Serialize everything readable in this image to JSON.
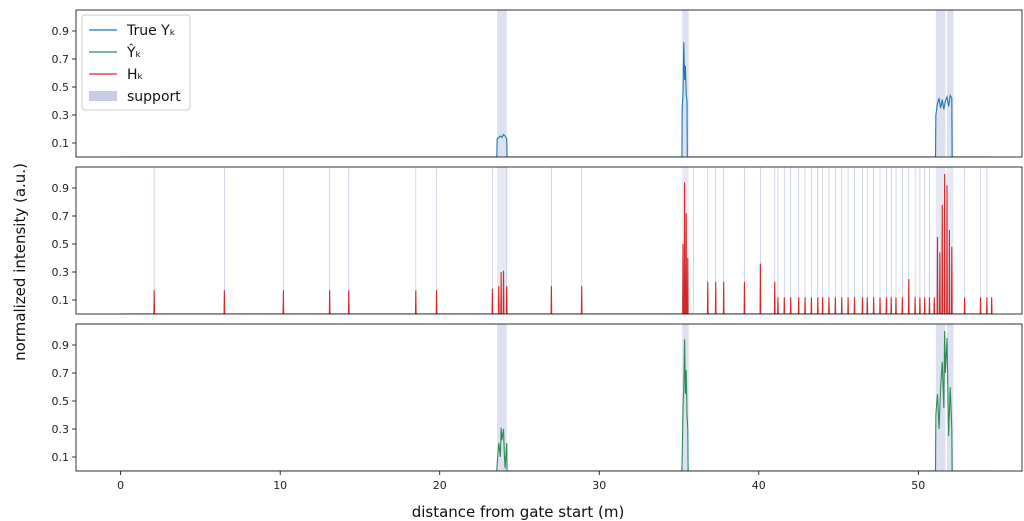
{
  "chart_data": {
    "type": "line",
    "xlabel": "distance from gate start (m)",
    "ylabel": "normalized intensity (a.u.)",
    "xlim": [
      -2.8,
      56.5
    ],
    "xticks": [
      0,
      10,
      20,
      30,
      40,
      50
    ],
    "yticks": [
      0.1,
      0.3,
      0.5,
      0.7,
      0.9
    ],
    "legend": {
      "placement": "top-left",
      "entries": [
        {
          "label": "True Yₖ",
          "color": "#1f77b4",
          "kind": "line"
        },
        {
          "label": "Ŷₖ",
          "color": "#2e8b57",
          "kind": "line"
        },
        {
          "label": "Hₖ",
          "color": "#d62728",
          "kind": "line"
        },
        {
          "label": "support",
          "color": "#c7cce6",
          "kind": "patch"
        }
      ]
    },
    "support_regions": [
      [
        23.6,
        24.2
      ],
      [
        35.2,
        35.6
      ],
      [
        51.1,
        51.7
      ],
      [
        51.8,
        52.2
      ]
    ],
    "x_end": 54.6,
    "panels": [
      {
        "name": "True Yₖ",
        "color": "#1f77b4",
        "ylim": [
          0.0,
          1.05
        ],
        "baseline": 0.0,
        "spikes": [],
        "segments": [
          {
            "x": [
              23.6,
              23.7,
              23.8,
              23.9,
              24.0,
              24.1,
              24.2
            ],
            "y": [
              0.13,
              0.14,
              0.15,
              0.14,
              0.16,
              0.15,
              0.13
            ]
          },
          {
            "x": [
              35.2,
              35.25,
              35.3,
              35.35,
              35.4,
              35.45,
              35.5
            ],
            "y": [
              0.35,
              0.45,
              0.82,
              0.55,
              0.65,
              0.45,
              0.4
            ]
          },
          {
            "x": [
              51.1,
              51.2,
              51.3,
              51.4,
              51.5,
              51.6,
              51.7,
              51.8,
              51.9,
              52.0,
              52.1
            ],
            "y": [
              0.3,
              0.38,
              0.42,
              0.35,
              0.41,
              0.34,
              0.4,
              0.43,
              0.36,
              0.44,
              0.42
            ]
          }
        ]
      },
      {
        "name": "Hₖ",
        "color": "#d62728",
        "ylim": [
          0.0,
          1.05
        ],
        "baseline": 0.0,
        "spikes": [
          {
            "x": 2.1,
            "y": 0.17
          },
          {
            "x": 6.5,
            "y": 0.17
          },
          {
            "x": 10.2,
            "y": 0.17
          },
          {
            "x": 13.1,
            "y": 0.17
          },
          {
            "x": 14.3,
            "y": 0.17
          },
          {
            "x": 18.5,
            "y": 0.17
          },
          {
            "x": 19.8,
            "y": 0.17
          },
          {
            "x": 23.3,
            "y": 0.18
          },
          {
            "x": 23.7,
            "y": 0.2
          },
          {
            "x": 23.85,
            "y": 0.3
          },
          {
            "x": 24.0,
            "y": 0.31
          },
          {
            "x": 24.2,
            "y": 0.2
          },
          {
            "x": 27.0,
            "y": 0.2
          },
          {
            "x": 28.9,
            "y": 0.2
          },
          {
            "x": 35.25,
            "y": 0.5
          },
          {
            "x": 35.35,
            "y": 0.94
          },
          {
            "x": 35.45,
            "y": 0.72
          },
          {
            "x": 35.55,
            "y": 0.4
          },
          {
            "x": 36.8,
            "y": 0.23
          },
          {
            "x": 37.3,
            "y": 0.23
          },
          {
            "x": 37.8,
            "y": 0.23
          },
          {
            "x": 39.1,
            "y": 0.23
          },
          {
            "x": 40.1,
            "y": 0.36
          },
          {
            "x": 41.0,
            "y": 0.23
          },
          {
            "x": 41.2,
            "y": 0.12
          },
          {
            "x": 41.6,
            "y": 0.12
          },
          {
            "x": 42.0,
            "y": 0.12
          },
          {
            "x": 42.5,
            "y": 0.12
          },
          {
            "x": 42.9,
            "y": 0.12
          },
          {
            "x": 43.3,
            "y": 0.12
          },
          {
            "x": 43.7,
            "y": 0.12
          },
          {
            "x": 44.0,
            "y": 0.12
          },
          {
            "x": 44.4,
            "y": 0.12
          },
          {
            "x": 44.8,
            "y": 0.12
          },
          {
            "x": 45.2,
            "y": 0.12
          },
          {
            "x": 45.6,
            "y": 0.12
          },
          {
            "x": 46.0,
            "y": 0.12
          },
          {
            "x": 46.5,
            "y": 0.12
          },
          {
            "x": 46.8,
            "y": 0.12
          },
          {
            "x": 47.2,
            "y": 0.12
          },
          {
            "x": 47.6,
            "y": 0.12
          },
          {
            "x": 48.0,
            "y": 0.12
          },
          {
            "x": 48.3,
            "y": 0.12
          },
          {
            "x": 48.6,
            "y": 0.12
          },
          {
            "x": 49.0,
            "y": 0.12
          },
          {
            "x": 49.4,
            "y": 0.25
          },
          {
            "x": 49.8,
            "y": 0.12
          },
          {
            "x": 50.1,
            "y": 0.12
          },
          {
            "x": 50.4,
            "y": 0.12
          },
          {
            "x": 50.7,
            "y": 0.12
          },
          {
            "x": 51.0,
            "y": 0.12
          },
          {
            "x": 51.2,
            "y": 0.55
          },
          {
            "x": 51.35,
            "y": 0.44
          },
          {
            "x": 51.5,
            "y": 0.78
          },
          {
            "x": 51.65,
            "y": 1.0
          },
          {
            "x": 51.8,
            "y": 0.92
          },
          {
            "x": 51.95,
            "y": 0.6
          },
          {
            "x": 52.1,
            "y": 0.48
          },
          {
            "x": 52.9,
            "y": 0.12
          },
          {
            "x": 53.9,
            "y": 0.12
          },
          {
            "x": 54.3,
            "y": 0.12
          },
          {
            "x": 54.6,
            "y": 0.12
          }
        ],
        "rule_lines": [
          2.1,
          6.5,
          10.2,
          13.1,
          14.3,
          18.5,
          19.8,
          23.3,
          24.2,
          27.0,
          28.9,
          35.9,
          36.8,
          37.3,
          37.8,
          39.1,
          40.1,
          41.0,
          41.2,
          41.6,
          42.0,
          42.5,
          42.9,
          43.3,
          43.7,
          44.0,
          44.4,
          44.8,
          45.2,
          45.6,
          46.0,
          46.5,
          46.8,
          47.2,
          47.6,
          48.0,
          48.3,
          48.6,
          49.0,
          49.4,
          49.8,
          50.1,
          50.4,
          50.7,
          52.9,
          53.9,
          54.3
        ],
        "segments": []
      },
      {
        "name": "Ŷₖ",
        "color": "#2e8b57",
        "ylim": [
          0.0,
          1.05
        ],
        "baseline": 0.0,
        "spikes": [],
        "segments": [
          {
            "x": [
              23.6,
              23.7,
              23.8,
              23.85,
              23.9,
              24.0,
              24.05,
              24.1,
              24.2
            ],
            "y": [
              0.05,
              0.2,
              0.1,
              0.31,
              0.22,
              0.3,
              0.12,
              0.02,
              0.2
            ]
          },
          {
            "x": [
              35.2,
              35.25,
              35.3,
              35.35,
              35.4,
              35.45,
              35.5,
              35.55
            ],
            "y": [
              0.1,
              0.45,
              0.6,
              0.94,
              0.55,
              0.72,
              0.4,
              0.3
            ]
          },
          {
            "x": [
              51.1,
              51.2,
              51.3,
              51.4,
              51.5,
              51.6,
              51.65,
              51.7,
              51.8,
              51.9,
              52.0,
              52.1
            ],
            "y": [
              0.4,
              0.55,
              0.3,
              0.6,
              0.78,
              0.45,
              1.0,
              0.7,
              0.95,
              0.25,
              0.6,
              0.3
            ]
          }
        ]
      }
    ]
  }
}
